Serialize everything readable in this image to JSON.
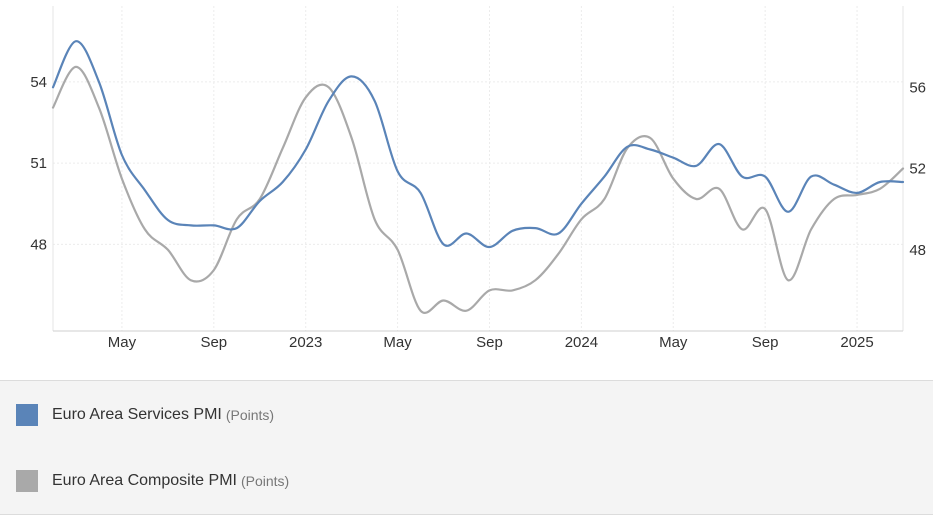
{
  "chart_data": {
    "type": "line",
    "left_axis": {
      "ticks": [
        48,
        51,
        54
      ],
      "range": [
        44.8,
        56.8
      ]
    },
    "right_axis": {
      "ticks": [
        48,
        52,
        56
      ],
      "range": [
        44,
        60
      ]
    },
    "x_ticks": [
      "May",
      "Sep",
      "2023",
      "May",
      "Sep",
      "2024",
      "May",
      "Sep",
      "2025"
    ],
    "x_range": [
      "2022-02",
      "2025-03"
    ],
    "grid": true,
    "legend_placement": "bottom",
    "series": [
      {
        "name": "Euro Area Services PMI",
        "unit": "(Points)",
        "color": "#5a84b8",
        "axis": "left",
        "x": [
          "2022-02",
          "2022-03",
          "2022-04",
          "2022-05",
          "2022-06",
          "2022-07",
          "2022-08",
          "2022-09",
          "2022-10",
          "2022-11",
          "2022-12",
          "2023-01",
          "2023-02",
          "2023-03",
          "2023-04",
          "2023-05",
          "2023-06",
          "2023-07",
          "2023-08",
          "2023-09",
          "2023-10",
          "2023-11",
          "2023-12",
          "2024-01",
          "2024-02",
          "2024-03",
          "2024-04",
          "2024-05",
          "2024-06",
          "2024-07",
          "2024-08",
          "2024-09",
          "2024-10",
          "2024-11",
          "2024-12",
          "2025-01",
          "2025-02",
          "2025-03"
        ],
        "values": [
          53.8,
          55.5,
          54.0,
          51.3,
          50.0,
          48.9,
          48.7,
          48.7,
          48.6,
          49.6,
          50.3,
          51.5,
          53.3,
          54.2,
          53.3,
          50.7,
          49.9,
          48.0,
          48.4,
          47.9,
          48.5,
          48.6,
          48.4,
          49.5,
          50.5,
          51.6,
          51.5,
          51.2,
          50.9,
          51.7,
          50.5,
          50.5,
          49.2,
          50.5,
          50.2,
          49.9,
          50.3,
          50.3
        ]
      },
      {
        "name": "Euro Area Composite PMI",
        "unit": "(Points)",
        "color": "#a9a9a9",
        "axis": "right",
        "x": [
          "2022-02",
          "2022-03",
          "2022-04",
          "2022-05",
          "2022-06",
          "2022-07",
          "2022-08",
          "2022-09",
          "2022-10",
          "2022-11",
          "2022-12",
          "2023-01",
          "2023-02",
          "2023-03",
          "2023-04",
          "2023-05",
          "2023-06",
          "2023-07",
          "2023-08",
          "2023-09",
          "2023-10",
          "2023-11",
          "2023-12",
          "2024-01",
          "2024-02",
          "2024-03",
          "2024-04",
          "2024-05",
          "2024-06",
          "2024-07",
          "2024-08",
          "2024-09",
          "2024-10",
          "2024-11",
          "2024-12",
          "2025-01",
          "2025-02",
          "2025-03"
        ],
        "values": [
          55.0,
          57.0,
          55.0,
          51.5,
          49.0,
          48.0,
          46.5,
          47.0,
          49.5,
          50.5,
          53.0,
          55.5,
          56.0,
          53.5,
          49.5,
          48.0,
          45.0,
          45.5,
          45.0,
          46.0,
          46.0,
          46.5,
          47.8,
          49.5,
          50.5,
          53.0,
          53.5,
          51.5,
          50.5,
          51.0,
          49.0,
          50.0,
          46.5,
          49.0,
          50.5,
          50.7,
          51.0,
          52.0
        ]
      }
    ]
  }
}
